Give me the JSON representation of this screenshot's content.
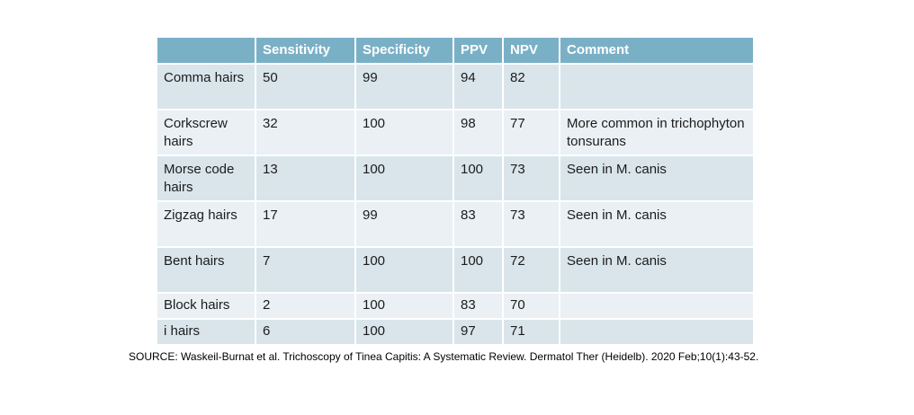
{
  "table": {
    "columns": [
      "",
      "Sensitivity",
      "Specificity",
      "PPV",
      "NPV",
      "Comment"
    ],
    "rows": [
      {
        "label": "Comma hairs",
        "sensitivity": "50",
        "specificity": "99",
        "ppv": "94",
        "npv": "82",
        "comment": ""
      },
      {
        "label": "Corkscrew hairs",
        "sensitivity": "32",
        "specificity": "100",
        "ppv": "98",
        "npv": "77",
        "comment": "More common in trichophyton tonsurans"
      },
      {
        "label": "Morse code hairs",
        "sensitivity": "13",
        "specificity": "100",
        "ppv": "100",
        "npv": "73",
        "comment": "Seen in M. canis"
      },
      {
        "label": "Zigzag hairs",
        "sensitivity": "17",
        "specificity": "99",
        "ppv": "83",
        "npv": "73",
        "comment": "Seen in M. canis"
      },
      {
        "label": "Bent hairs",
        "sensitivity": "7",
        "specificity": "100",
        "ppv": "100",
        "npv": "72",
        "comment": "Seen in M. canis"
      },
      {
        "label": "Block hairs",
        "sensitivity": "2",
        "specificity": "100",
        "ppv": "83",
        "npv": "70",
        "comment": ""
      },
      {
        "label": "i hairs",
        "sensitivity": "6",
        "specificity": "100",
        "ppv": "97",
        "npv": "71",
        "comment": ""
      }
    ]
  },
  "source": "SOURCE: Waskeil-Burnat et al. Trichoscopy of Tinea Capitis: A Systematic Review. Dermatol Ther (Heidelb). 2020 Feb;10(1):43-52.",
  "colors": {
    "header_bg": "#7ab0c6",
    "header_text": "#ffffff",
    "row_odd_bg": "#d9e5eb",
    "row_even_bg": "#eaf0f4",
    "body_text": "#1c1c1c",
    "page_bg": "#ffffff"
  }
}
